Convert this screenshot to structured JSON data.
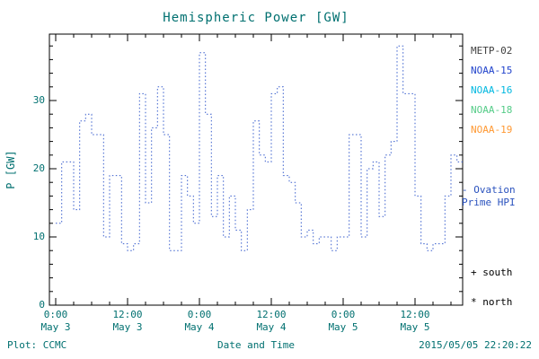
{
  "colors": {
    "accent": "#007070",
    "line": "#3a5fcd",
    "note": "#2a52be",
    "axis": "#000000"
  },
  "chart_data": {
    "type": "line",
    "title": "Hemispheric Power [GW]",
    "xlabel": "Date and Time",
    "ylabel": "P [GW]",
    "ylim": [
      0,
      40
    ],
    "yticks": [
      0,
      10,
      20,
      30
    ],
    "x_start": "2015-05-03 00:00",
    "x_step_hours": 1,
    "xticks": [
      {
        "hour": 0,
        "time": "0:00",
        "date": "May 3"
      },
      {
        "hour": 12,
        "time": "12:00",
        "date": "May 3"
      },
      {
        "hour": 24,
        "time": "0:00",
        "date": "May 4"
      },
      {
        "hour": 36,
        "time": "12:00",
        "date": "May 4"
      },
      {
        "hour": 48,
        "time": "0:00",
        "date": "May 5"
      },
      {
        "hour": 60,
        "time": "12:00",
        "date": "May 5"
      }
    ],
    "series": [
      {
        "name": "Ovation Prime HPI",
        "style": "dotted-step",
        "color": "#3a5fcd",
        "values": [
          12,
          21,
          21,
          14,
          27,
          28,
          25,
          25,
          10,
          19,
          19,
          9,
          8,
          9,
          31,
          15,
          26,
          32,
          25,
          8,
          8,
          19,
          16,
          12,
          37,
          28,
          13,
          19,
          10,
          16,
          11,
          8,
          14,
          27,
          22,
          21,
          31,
          32,
          19,
          18,
          15,
          10,
          11,
          9,
          10,
          10,
          8,
          10,
          10,
          25,
          25,
          10,
          20,
          21,
          13,
          22,
          24,
          38,
          31,
          31,
          16,
          9,
          8,
          9,
          9,
          16,
          22,
          21
        ]
      }
    ],
    "legend": [
      {
        "label": "METP-02",
        "color": "#404040"
      },
      {
        "label": "NOAA-15",
        "color": "#2244cc"
      },
      {
        "label": "NOAA-16",
        "color": "#00b8e0"
      },
      {
        "label": "NOAA-18",
        "color": "#55cc88"
      },
      {
        "label": "NOAA-19",
        "color": "#ff9933"
      }
    ],
    "grid": false,
    "legend_position": "right-outside"
  },
  "annotations": {
    "ovation_line1": "- Ovation",
    "ovation_line2": "Prime HPI",
    "south_marker": "+ south",
    "north_marker": "* north"
  },
  "footer": {
    "plot_credit": "Plot: CCMC",
    "timestamp": "2015/05/05 22:20:22"
  }
}
